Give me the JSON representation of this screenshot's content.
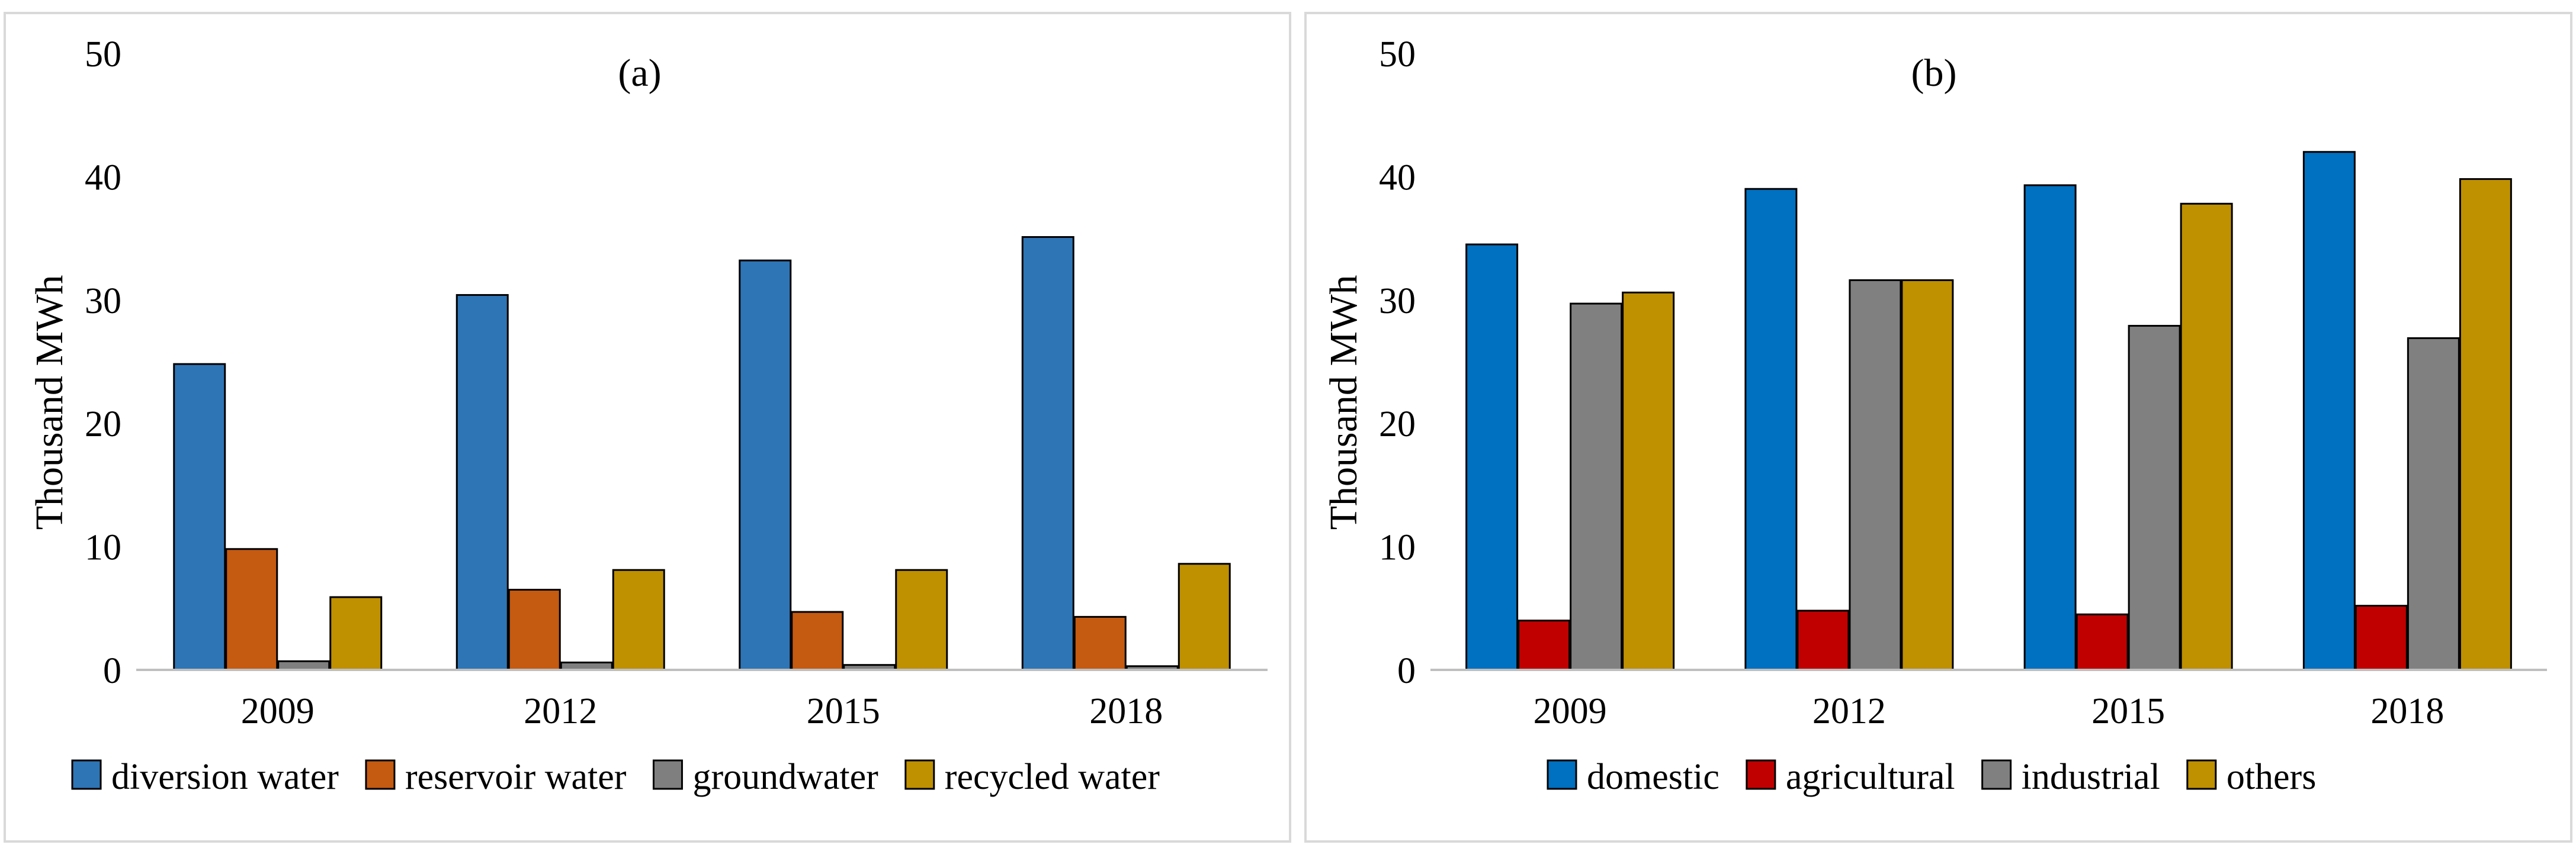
{
  "chart_data": [
    {
      "type": "bar",
      "title": "(a)",
      "xlabel": "",
      "ylabel": "Thousand MWh",
      "ylim": [
        0,
        50
      ],
      "yticks": [
        0,
        10,
        20,
        30,
        40,
        50
      ],
      "grid": false,
      "legend_position": "bottom",
      "categories": [
        "2009",
        "2012",
        "2015",
        "2018"
      ],
      "series": [
        {
          "name": "diversion water",
          "color": "#2E75B6",
          "values": [
            24.8,
            30.4,
            33.2,
            35.1
          ]
        },
        {
          "name": "reservoir water",
          "color": "#C55A11",
          "values": [
            9.8,
            6.5,
            4.7,
            4.3
          ]
        },
        {
          "name": "groundwater",
          "color": "#7F7F7F",
          "values": [
            0.7,
            0.6,
            0.4,
            0.3
          ]
        },
        {
          "name": "recycled water",
          "color": "#BF9000",
          "values": [
            5.9,
            8.1,
            8.1,
            8.6
          ]
        }
      ]
    },
    {
      "type": "bar",
      "title": "(b)",
      "xlabel": "",
      "ylabel": "Thousand MWh",
      "ylim": [
        0,
        50
      ],
      "yticks": [
        0,
        10,
        20,
        30,
        40,
        50
      ],
      "grid": false,
      "legend_position": "bottom",
      "categories": [
        "2009",
        "2012",
        "2015",
        "2018"
      ],
      "series": [
        {
          "name": "domestic",
          "color": "#0070C0",
          "values": [
            34.5,
            39.0,
            39.3,
            42.0
          ]
        },
        {
          "name": "agricultural",
          "color": "#C00000",
          "values": [
            4.0,
            4.8,
            4.5,
            5.2
          ]
        },
        {
          "name": "industrial",
          "color": "#808080",
          "values": [
            29.7,
            31.6,
            27.9,
            26.9
          ]
        },
        {
          "name": "others",
          "color": "#BF9000",
          "values": [
            30.6,
            31.6,
            37.8,
            39.8
          ]
        }
      ]
    }
  ]
}
